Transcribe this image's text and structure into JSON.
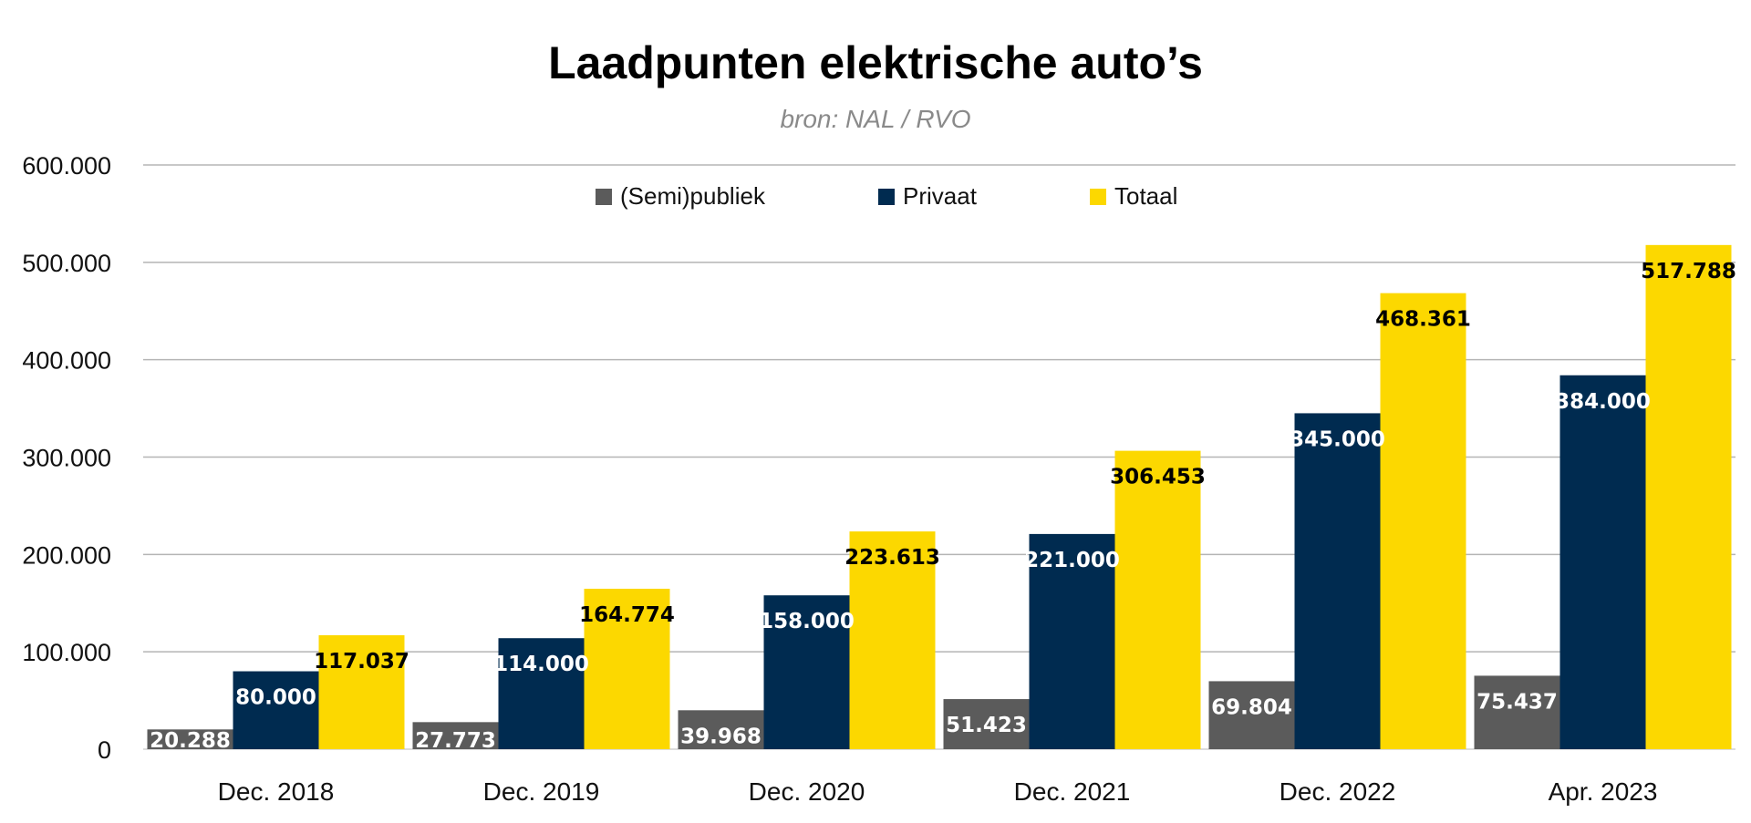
{
  "chart_data": {
    "type": "bar",
    "title": "Laadpunten elektrische auto’s",
    "subtitle": "bron: NAL / RVO",
    "categories": [
      "Dec. 2018",
      "Dec. 2019",
      "Dec. 2020",
      "Dec. 2021",
      "Dec. 2022",
      "Apr. 2023"
    ],
    "series": [
      {
        "name": "(Semi)publiek",
        "color": "#5b5b5b",
        "label_color": "#ffffff",
        "values": [
          20288,
          27773,
          39968,
          51423,
          69804,
          75437
        ],
        "labels": [
          "20.288",
          "27.773",
          "39.968",
          "51.423",
          "69.804",
          "75.437"
        ]
      },
      {
        "name": "Privaat",
        "color": "#002b50",
        "label_color": "#ffffff",
        "values": [
          80000,
          114000,
          158000,
          221000,
          345000,
          384000
        ],
        "labels": [
          "80.000",
          "114.000",
          "158.000",
          "221.000",
          "345.000",
          "384.000"
        ]
      },
      {
        "name": "Totaal",
        "color": "#fcd800",
        "label_color": "#000000",
        "values": [
          117037,
          164774,
          223613,
          306453,
          468361,
          517788
        ],
        "labels": [
          "117.037",
          "164.774",
          "223.613",
          "306.453",
          "468.361",
          "517.788"
        ]
      }
    ],
    "ylim": [
      0,
      600000
    ],
    "yticks": [
      0,
      100000,
      200000,
      300000,
      400000,
      500000,
      600000
    ],
    "ytick_labels": [
      "0",
      "100.000",
      "200.000",
      "300.000",
      "400.000",
      "500.000",
      "600.000"
    ],
    "grid": true,
    "legend_position": "top-center"
  }
}
